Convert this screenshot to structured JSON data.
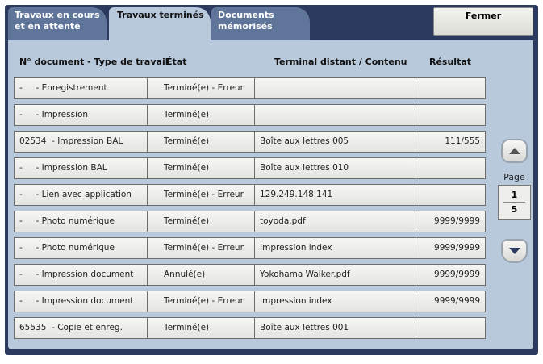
{
  "tabs": [
    {
      "label": "Travaux en cours et en attente",
      "line1": "Travaux en cours",
      "line2": "et en attente"
    },
    {
      "label": "Travaux terminés"
    },
    {
      "label": "Documents mémorisés",
      "line1": "Documents",
      "line2": "mémorisés"
    }
  ],
  "active_tab": "Travaux terminés",
  "close_label": "Fermer",
  "columns": [
    "N° document - Type de travail",
    "État",
    "Terminal distant / Contenu",
    "Résultat"
  ],
  "rows": [
    [
      "-     - Enregistrement",
      "Terminé(e) - Erreur",
      "",
      ""
    ],
    [
      "-     - Impression",
      "Terminé(e)",
      "",
      ""
    ],
    [
      "02534  - Impression BAL",
      "Terminé(e)",
      "Boîte aux lettres 005",
      "111/555"
    ],
    [
      "-     - Impression BAL",
      "Terminé(e)",
      "Boîte aux lettres 010",
      ""
    ],
    [
      "-     - Lien avec application",
      "Terminé(e) - Erreur",
      "129.249.148.141",
      ""
    ],
    [
      "-     - Photo numérique",
      "Terminé(e)",
      "toyoda.pdf",
      "9999/9999"
    ],
    [
      "-     - Photo numérique",
      "Terminé(e) - Erreur",
      "Impression index",
      "9999/9999"
    ],
    [
      "-     - Impression document",
      "Annulé(e)",
      "Yokohama Walker.pdf",
      "9999/9999"
    ],
    [
      "-     - Impression document",
      "Terminé(e) - Erreur",
      "Impression index",
      "9999/9999"
    ],
    [
      "65535  - Copie et enreg.",
      "Terminé(e)",
      "Boîte aux lettres 001",
      ""
    ]
  ],
  "pager": {
    "label": "Page",
    "current": "1",
    "total": "5",
    "up_icon": "triangle-up",
    "down_icon": "triangle-down"
  }
}
